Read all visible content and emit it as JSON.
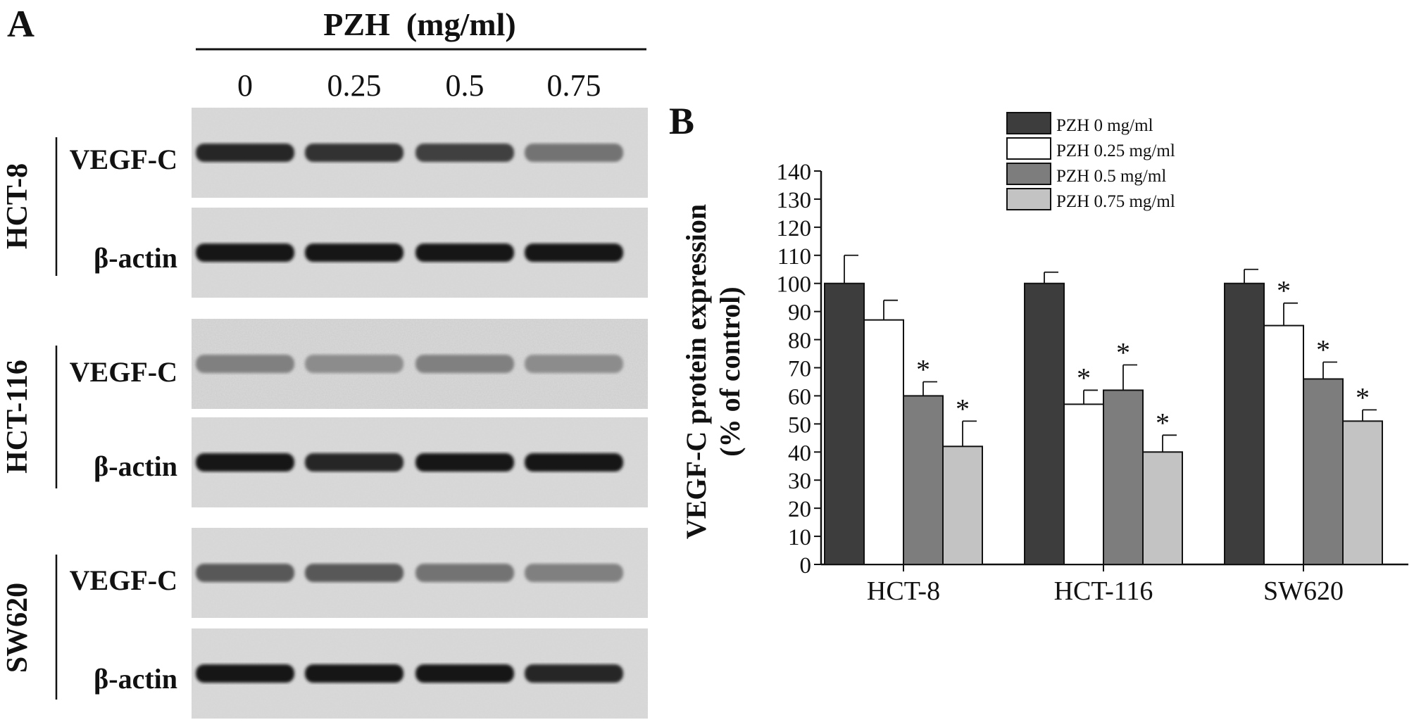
{
  "panel_a": {
    "letter": "A",
    "treatment_label": "PZH  (mg/ml)",
    "concentrations": [
      "0",
      "0.25",
      "0.5",
      "0.75"
    ],
    "cell_lines": [
      {
        "name": "HCT-8",
        "rows": [
          "VEGF-C",
          "β-actin"
        ]
      },
      {
        "name": "HCT-116",
        "rows": [
          "VEGF-C",
          "β-actin"
        ]
      },
      {
        "name": "SW620",
        "rows": [
          "VEGF-C",
          "β-actin"
        ]
      }
    ],
    "band_intensity": {
      "HCT-8": {
        "VEGF-C": [
          0.85,
          0.8,
          0.75,
          0.55
        ],
        "β-actin": [
          0.9,
          0.9,
          0.9,
          0.9
        ]
      },
      "HCT-116": {
        "VEGF-C": [
          0.5,
          0.45,
          0.5,
          0.45
        ],
        "β-actin": [
          0.9,
          0.85,
          0.9,
          0.9
        ]
      },
      "SW620": {
        "VEGF-C": [
          0.65,
          0.65,
          0.55,
          0.5
        ],
        "β-actin": [
          0.9,
          0.9,
          0.9,
          0.85
        ]
      }
    }
  },
  "chart_data": {
    "type": "bar",
    "panel_letter": "B",
    "categories": [
      "HCT-8",
      "HCT-116",
      "SW620"
    ],
    "series": [
      {
        "name": "PZH      0 mg/ml",
        "color": "#3d3d3d",
        "values": [
          100,
          100,
          100
        ],
        "errors": [
          10,
          4,
          5
        ],
        "significant": [
          false,
          false,
          false
        ]
      },
      {
        "name": "PZH 0.25 mg/ml",
        "color": "#ffffff",
        "values": [
          87,
          57,
          85
        ],
        "errors": [
          7,
          5,
          8
        ],
        "significant": [
          false,
          true,
          true
        ]
      },
      {
        "name": "PZH 0.5   mg/ml",
        "color": "#7d7d7d",
        "values": [
          60,
          62,
          66
        ],
        "errors": [
          5,
          9,
          6
        ],
        "significant": [
          true,
          true,
          true
        ]
      },
      {
        "name": "PZH 0.75 mg/ml",
        "color": "#c3c3c3",
        "values": [
          42,
          40,
          51
        ],
        "errors": [
          9,
          6,
          4
        ],
        "significant": [
          true,
          true,
          true
        ]
      }
    ],
    "significance_marker": "*",
    "ylabel_line1": "VEGF-C protein expression",
    "ylabel_line2": "(% of control)",
    "ylim": [
      0,
      140
    ],
    "yticks": [
      0,
      10,
      20,
      30,
      40,
      50,
      60,
      70,
      80,
      90,
      100,
      110,
      120,
      130,
      140
    ],
    "legend_position": "top-right",
    "grid": false
  }
}
